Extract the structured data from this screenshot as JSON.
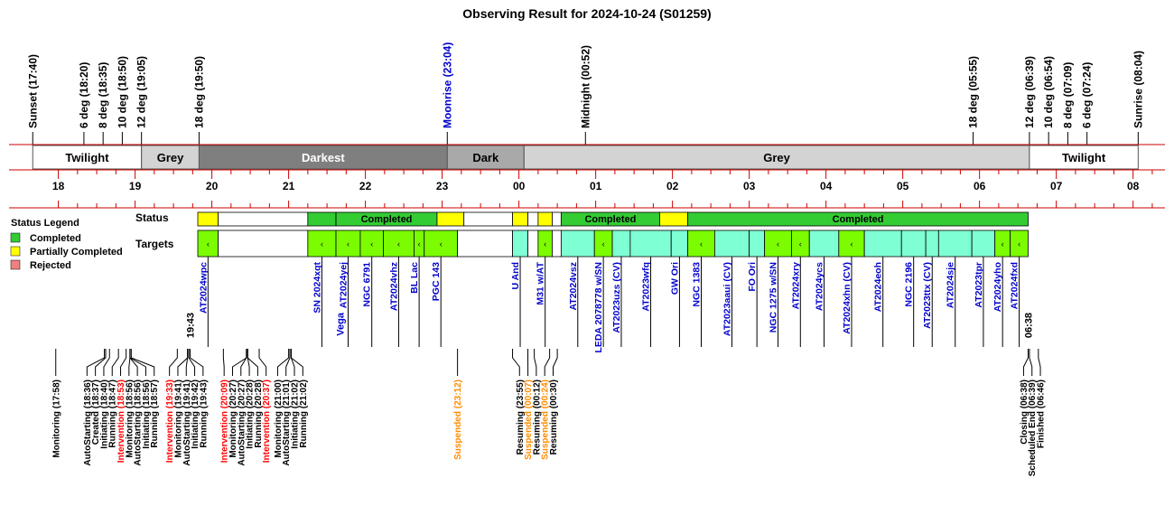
{
  "title": "Observing Result for 2024-10-24 (S01259)",
  "chart_data": {
    "type": "timeline",
    "axis": {
      "start": "17:25",
      "end": "08:20",
      "hour_ticks": [
        "18",
        "19",
        "20",
        "21",
        "22",
        "23",
        "00",
        "01",
        "02",
        "03",
        "04",
        "05",
        "06",
        "07",
        "08"
      ]
    },
    "events": [
      {
        "label": "Sunset (17:40)",
        "time": "17:40",
        "color": "#000000"
      },
      {
        "label": "6 deg (18:20)",
        "time": "18:20",
        "color": "#000000"
      },
      {
        "label": "8 deg (18:35)",
        "time": "18:35",
        "color": "#000000"
      },
      {
        "label": "10 deg (18:50)",
        "time": "18:50",
        "color": "#000000"
      },
      {
        "label": "12 deg (19:05)",
        "time": "19:05",
        "color": "#000000"
      },
      {
        "label": "18 deg (19:50)",
        "time": "19:50",
        "color": "#000000"
      },
      {
        "label": "Moonrise (23:04)",
        "time": "23:04",
        "color": "#0000cc"
      },
      {
        "label": "Midnight (00:52)",
        "time": "00:52",
        "color": "#000000"
      },
      {
        "label": "18 deg (05:55)",
        "time": "05:55",
        "color": "#000000"
      },
      {
        "label": "12 deg (06:39)",
        "time": "06:39",
        "color": "#000000"
      },
      {
        "label": "10 deg (06:54)",
        "time": "06:54",
        "color": "#000000"
      },
      {
        "label": "8 deg (07:09)",
        "time": "07:09",
        "color": "#000000"
      },
      {
        "label": "6 deg (07:24)",
        "time": "07:24",
        "color": "#000000"
      },
      {
        "label": "Sunrise (08:04)",
        "time": "08:04",
        "color": "#000000"
      }
    ],
    "periods": [
      {
        "label": "Twilight",
        "start": "17:40",
        "end": "19:05",
        "color": "#ffffff",
        "text_color": "#000000"
      },
      {
        "label": "Grey",
        "start": "19:05",
        "end": "19:50",
        "color": "#d3d3d3",
        "text_color": "#000000"
      },
      {
        "label": "Darkest",
        "start": "19:50",
        "end": "23:04",
        "color": "#7f7f7f",
        "text_color": "#ffffff"
      },
      {
        "label": "Dark",
        "start": "23:04",
        "end": "00:04",
        "color": "#a9a9a9",
        "text_color": "#000000"
      },
      {
        "label": "Grey",
        "start": "00:04",
        "end": "06:39",
        "color": "#d3d3d3",
        "text_color": "#000000"
      },
      {
        "label": "Twilight",
        "start": "06:39",
        "end": "08:04",
        "color": "#ffffff",
        "text_color": "#000000"
      }
    ],
    "row_labels": {
      "status": "Status",
      "targets": "Targets"
    },
    "legend": {
      "title": "Status Legend",
      "items": [
        {
          "label": "Completed",
          "color": "#33cc33"
        },
        {
          "label": "Partially Completed",
          "color": "#ffff00"
        },
        {
          "label": "Rejected",
          "color": "#f08080"
        }
      ]
    },
    "status": [
      {
        "start": "19:49",
        "end": "20:05",
        "state": "Partially Completed",
        "label": "",
        "color": "#ffff00"
      },
      {
        "start": "20:05",
        "end": "21:15",
        "state": "",
        "label": "",
        "color": "#ffffff"
      },
      {
        "start": "21:15",
        "end": "21:37",
        "state": "Completed",
        "label": "",
        "color": "#33cc33"
      },
      {
        "start": "21:37",
        "end": "22:56",
        "state": "Completed",
        "label": "Completed",
        "color": "#33cc33"
      },
      {
        "start": "22:56",
        "end": "23:17",
        "state": "Partially Completed",
        "label": "",
        "color": "#ffff00"
      },
      {
        "start": "23:17",
        "end": "23:55",
        "state": "",
        "label": "",
        "color": "#ffffff"
      },
      {
        "start": "23:55",
        "end": "00:07",
        "state": "Partially Completed",
        "label": "",
        "color": "#ffff00"
      },
      {
        "start": "00:07",
        "end": "00:15",
        "state": "",
        "label": "",
        "color": "#ffffff"
      },
      {
        "start": "00:15",
        "end": "00:26",
        "state": "Partially Completed",
        "label": "",
        "color": "#ffff00"
      },
      {
        "start": "00:26",
        "end": "00:33",
        "state": "",
        "label": "",
        "color": "#ffffff"
      },
      {
        "start": "00:33",
        "end": "01:50",
        "state": "Completed",
        "label": "Completed",
        "color": "#33cc33"
      },
      {
        "start": "01:50",
        "end": "02:12",
        "state": "Partially Completed",
        "label": "",
        "color": "#ffff00"
      },
      {
        "start": "02:12",
        "end": "06:38",
        "state": "Completed",
        "label": "Completed",
        "color": "#33cc33"
      }
    ],
    "targets": [
      {
        "name": "AT2024wpc",
        "start": "19:49",
        "end": "20:05",
        "color": "#7cfc00",
        "mark": "‹"
      },
      {
        "name": "",
        "start": "20:05",
        "end": "21:15",
        "color": "#ffffff",
        "mark": ""
      },
      {
        "name": "SN 2024xqt",
        "start": "21:15",
        "end": "21:37",
        "color": "#7cfc00",
        "mark": "‹"
      },
      {
        "name": "AT2024yej",
        "start": "21:37",
        "end": "21:56",
        "color": "#7cfc00",
        "mark": "‹"
      },
      {
        "name": "NGC 6791",
        "start": "21:56",
        "end": "22:14",
        "color": "#7cfc00",
        "mark": "‹"
      },
      {
        "name": "AT2024vhz",
        "start": "22:14",
        "end": "22:38",
        "color": "#7cfc00",
        "mark": "‹"
      },
      {
        "name": "BL Lac",
        "start": "22:38",
        "end": "22:46",
        "color": "#7cfc00",
        "mark": "‹"
      },
      {
        "name": "PGC 143",
        "start": "22:46",
        "end": "23:12",
        "color": "#7cfc00",
        "mark": "‹"
      },
      {
        "name": "",
        "start": "23:12",
        "end": "23:55",
        "color": "#ffffff",
        "mark": ""
      },
      {
        "name": "U And",
        "start": "23:55",
        "end": "00:07",
        "color": "#7fffd4",
        "mark": ""
      },
      {
        "name": "",
        "start": "00:07",
        "end": "00:15",
        "color": "#ffffff",
        "mark": ""
      },
      {
        "name": "M31 w/AT",
        "start": "00:15",
        "end": "00:26",
        "color": "#7cfc00",
        "mark": "‹"
      },
      {
        "name": "",
        "start": "00:26",
        "end": "00:33",
        "color": "#ffffff",
        "mark": ""
      },
      {
        "name": "AT2024vsz",
        "start": "00:33",
        "end": "00:59",
        "color": "#7fffd4",
        "mark": ""
      },
      {
        "name": "LEDA 2078778 w/SN",
        "start": "00:59",
        "end": "01:13",
        "color": "#7cfc00",
        "mark": "‹"
      },
      {
        "name": "AT2023uzs (CV)",
        "start": "01:13",
        "end": "01:27",
        "color": "#7fffd4",
        "mark": ""
      },
      {
        "name": "AT2023wfq",
        "start": "01:27",
        "end": "01:59",
        "color": "#7fffd4",
        "mark": ""
      },
      {
        "name": "GW Ori",
        "start": "01:59",
        "end": "02:12",
        "color": "#7fffd4",
        "mark": ""
      },
      {
        "name": "NGC 1383",
        "start": "02:12",
        "end": "02:33",
        "color": "#7cfc00",
        "mark": "‹"
      },
      {
        "name": "AT2023aaui (CV)",
        "start": "02:33",
        "end": "03:00",
        "color": "#7fffd4",
        "mark": ""
      },
      {
        "name": "FO Ori",
        "start": "03:00",
        "end": "03:12",
        "color": "#7fffd4",
        "mark": ""
      },
      {
        "name": "NGC 1275 w/SN",
        "start": "03:12",
        "end": "03:33",
        "color": "#7cfc00",
        "mark": "‹"
      },
      {
        "name": "AT2024xry",
        "start": "03:33",
        "end": "03:47",
        "color": "#7cfc00",
        "mark": "‹"
      },
      {
        "name": "AT2024ycs",
        "start": "03:47",
        "end": "04:10",
        "color": "#7fffd4",
        "mark": ""
      },
      {
        "name": "AT2024xhn (CV)",
        "start": "04:10",
        "end": "04:30",
        "color": "#7cfc00",
        "mark": "‹"
      },
      {
        "name": "AT2024eoh",
        "start": "04:30",
        "end": "04:59",
        "color": "#7fffd4",
        "mark": ""
      },
      {
        "name": "NGC 2196",
        "start": "04:59",
        "end": "05:18",
        "color": "#7fffd4",
        "mark": ""
      },
      {
        "name": "AT2023ttx (CV)",
        "start": "05:18",
        "end": "05:28",
        "color": "#7fffd4",
        "mark": ""
      },
      {
        "name": "AT2024sje",
        "start": "05:28",
        "end": "05:54",
        "color": "#7fffd4",
        "mark": ""
      },
      {
        "name": "AT2023tpr",
        "start": "05:54",
        "end": "06:12",
        "color": "#7fffd4",
        "mark": ""
      },
      {
        "name": "AT2024yho",
        "start": "06:12",
        "end": "06:24",
        "color": "#7cfc00",
        "mark": "‹"
      },
      {
        "name": "AT2024fxd",
        "start": "06:24",
        "end": "06:38",
        "color": "#7cfc00",
        "mark": "‹"
      }
    ],
    "extra_markers": [
      {
        "label": "19:43",
        "time": "19:43",
        "color": "#000000"
      },
      {
        "label": "Vega",
        "time": "21:40",
        "color": "#0000cc"
      },
      {
        "label": "06:38",
        "time": "06:38",
        "color": "#000000"
      }
    ],
    "log": [
      {
        "text": "Monitoring (17:58)",
        "time": "17:58",
        "color": "#000000"
      },
      {
        "text": "AutoStarting (18:36)",
        "time": "18:36",
        "color": "#000000"
      },
      {
        "text": "Created (18:37)",
        "time": "18:37",
        "color": "#000000"
      },
      {
        "text": "Initiating (18:40)",
        "time": "18:40",
        "color": "#000000"
      },
      {
        "text": "Running (18:47)",
        "time": "18:47",
        "color": "#000000"
      },
      {
        "text": "Intervention (18:53)",
        "time": "18:53",
        "color": "#ff0000"
      },
      {
        "text": "Monitoring (18:56)",
        "time": "18:56",
        "color": "#000000"
      },
      {
        "text": "AutoStarting (18:56)",
        "time": "18:56",
        "color": "#000000"
      },
      {
        "text": "Initiating (18:56)",
        "time": "18:56",
        "color": "#000000"
      },
      {
        "text": "Running (18:57)",
        "time": "18:57",
        "color": "#000000"
      },
      {
        "text": "Intervention (19:33)",
        "time": "19:33",
        "color": "#ff0000"
      },
      {
        "text": "Monitoring (19:41)",
        "time": "19:41",
        "color": "#000000"
      },
      {
        "text": "AutoStarting (19:41)",
        "time": "19:41",
        "color": "#000000"
      },
      {
        "text": "Initiating (19:42)",
        "time": "19:42",
        "color": "#000000"
      },
      {
        "text": "Running (19:43)",
        "time": "19:43",
        "color": "#000000"
      },
      {
        "text": "Intervention (20:09)",
        "time": "20:09",
        "color": "#ff0000"
      },
      {
        "text": "Monitoring (20:27)",
        "time": "20:27",
        "color": "#000000"
      },
      {
        "text": "AutoStarting (20:27)",
        "time": "20:27",
        "color": "#000000"
      },
      {
        "text": "Initiating (20:28)",
        "time": "20:28",
        "color": "#000000"
      },
      {
        "text": "Running (20:28)",
        "time": "20:28",
        "color": "#000000"
      },
      {
        "text": "Intervention (20:37)",
        "time": "20:37",
        "color": "#ff0000"
      },
      {
        "text": "Monitoring (21:00)",
        "time": "21:00",
        "color": "#000000"
      },
      {
        "text": "AutoStarting (21:01)",
        "time": "21:01",
        "color": "#000000"
      },
      {
        "text": "Initiating (21:02)",
        "time": "21:02",
        "color": "#000000"
      },
      {
        "text": "Running (21:02)",
        "time": "21:02",
        "color": "#000000"
      },
      {
        "text": "Suspended (23:12)",
        "time": "23:12",
        "color": "#ff8c00"
      },
      {
        "text": "Resuming (23:55)",
        "time": "23:55",
        "color": "#000000"
      },
      {
        "text": "Suspended (00:07)",
        "time": "00:07",
        "color": "#ff8c00"
      },
      {
        "text": "Resuming (00:12)",
        "time": "00:12",
        "color": "#000000"
      },
      {
        "text": "Suspended (00:24)",
        "time": "00:24",
        "color": "#ff8c00"
      },
      {
        "text": "Resuming (00:30)",
        "time": "00:30",
        "color": "#000000"
      },
      {
        "text": "Closing (06:38)",
        "time": "06:38",
        "color": "#000000"
      },
      {
        "text": "Scheduled End (06:39)",
        "time": "06:39",
        "color": "#000000"
      },
      {
        "text": "Finished (06:46)",
        "time": "06:46",
        "color": "#000000"
      }
    ]
  }
}
